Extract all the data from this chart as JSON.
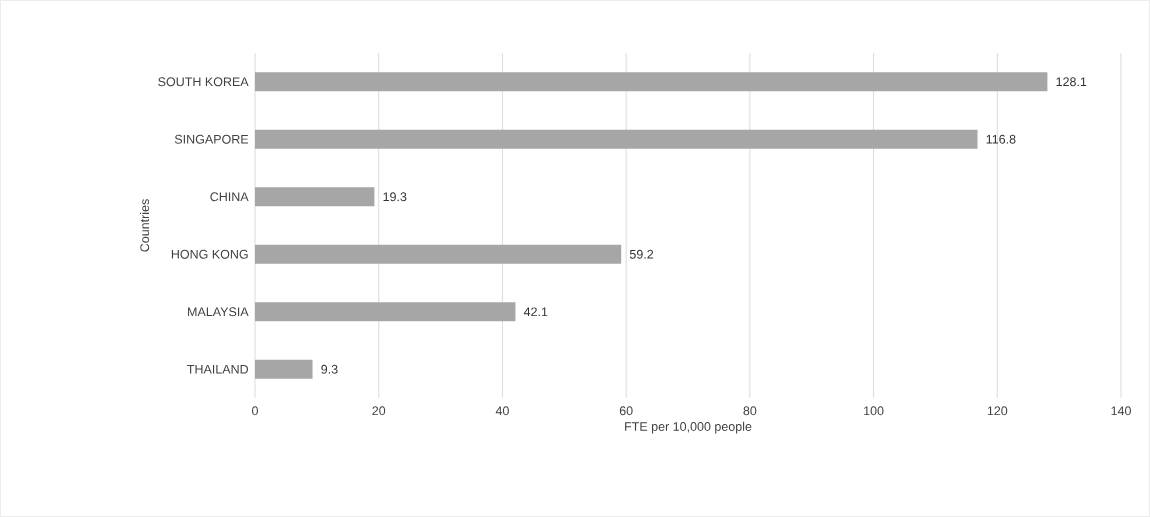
{
  "chart_data": {
    "type": "bar",
    "orientation": "horizontal",
    "categories": [
      "SOUTH KOREA",
      "SINGAPORE",
      "CHINA",
      "HONG KONG",
      "MALAYSIA",
      "THAILAND"
    ],
    "values": [
      128.1,
      116.8,
      19.3,
      59.2,
      42.1,
      9.3
    ],
    "color": "#a6a6a6",
    "xlim": [
      0,
      140
    ],
    "xticks": [
      0,
      20,
      40,
      60,
      80,
      100,
      120,
      140
    ],
    "grid": "x",
    "data_labels": true,
    "xlabel": "FTE per 10,000 people",
    "ylabel": "Countries"
  }
}
